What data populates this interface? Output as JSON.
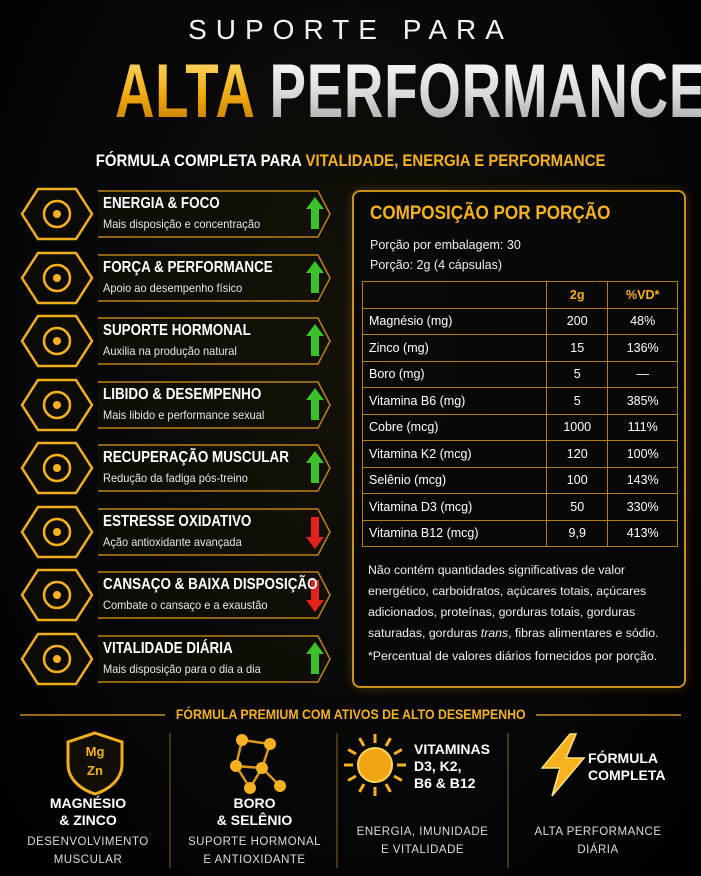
{
  "header": {
    "kicker": "SUPORTE PARA",
    "title_accent": "ALTA",
    "title_main": "PERFORMANCE",
    "subtitle_lead": "FÓRMULA COMPLETA PARA",
    "subtitle_highlight": "VITALIDADE, ENERGIA E PERFORMANCE"
  },
  "benefits": [
    {
      "title": "ENERGIA & FOCO",
      "description": "Mais disposição e concentração",
      "trend": "up"
    },
    {
      "title": "FORÇA & PERFORMANCE",
      "description": "Apoio ao desempenho físico",
      "trend": "up"
    },
    {
      "title": "SUPORTE HORMONAL",
      "description": "Auxilia na produção natural",
      "trend": "up"
    },
    {
      "title": "LIBIDO & DESEMPENHO",
      "description": "Mais libido e performance sexual",
      "trend": "up"
    },
    {
      "title": "RECUPERAÇÃO MUSCULAR",
      "description": "Redução da fadiga pós-treino",
      "trend": "up"
    },
    {
      "title": "ESTRESSE OXIDATIVO",
      "description": "Ação antioxidante avançada",
      "trend": "down"
    },
    {
      "title": "CANSAÇO & BAIXA DISPOSIÇÃO",
      "description": "Combate o cansaço e a exaustão",
      "trend": "down"
    },
    {
      "title": "VITALIDADE DIÁRIA",
      "description": "Mais disposição para o dia a dia",
      "trend": "up"
    }
  ],
  "composition": {
    "title": "COMPOSIÇÃO POR PORÇÃO",
    "serving_lines": [
      "Porção por embalagem: 30",
      "Porção: 2g (4 cápsulas)"
    ],
    "columns": [
      "2g",
      "%VD*"
    ],
    "rows": [
      [
        "Magnésio (mg)",
        "200",
        "48%"
      ],
      [
        "Zinco (mg)",
        "15",
        "136%"
      ],
      [
        "Boro (mg)",
        "5",
        "—"
      ],
      [
        "Vitamina B6 (mg)",
        "5",
        "385%"
      ],
      [
        "Cobre (mcg)",
        "1000",
        "111%"
      ],
      [
        "Vitamina K2 (mcg)",
        "120",
        "100%"
      ],
      [
        "Selênio (mcg)",
        "100",
        "143%"
      ],
      [
        "Vitamina D3 (mcg)",
        "50",
        "330%"
      ],
      [
        "Vitamina B12 (mcg)",
        "9,9",
        "413%"
      ]
    ],
    "note": [
      "Não contém quantidades significativas de valor energético, carboidratos, açúcares totais, açúcares adicionados, proteínas, gorduras totais, gorduras saturadas, gorduras ",
      "trans",
      ", fibras alimentares e sódio."
    ],
    "footnote": "*Percentual de valores diários fornecidos por porção."
  },
  "premium": {
    "banner": "FÓRMULA PREMIUM COM ATIVOS DE ALTO DESEMPENHO",
    "features": [
      {
        "icon_labels": [
          "Mg",
          "Zn"
        ],
        "title_lines": [
          "MAGNÉSIO",
          "& ZINCO"
        ],
        "subtitle_lines": [
          "DESENVOLVIMENTO",
          "MUSCULAR"
        ]
      },
      {
        "title_lines": [
          "BORO",
          "& SELÊNIO"
        ],
        "subtitle_lines": [
          "SUPORTE HORMONAL",
          "E ANTIOXIDANTE"
        ]
      },
      {
        "title_lines": [
          "VITAMINAS",
          "D3, K2,",
          "B6 & B12"
        ],
        "subtitle_lines": [
          "ENERGIA, IMUNIDADE",
          "E VITALIDADE"
        ]
      },
      {
        "title_lines": [
          "FÓRMULA",
          "COMPLETA"
        ],
        "subtitle_lines": [
          "ALTA PERFORMANCE",
          "DIÁRIA"
        ]
      }
    ]
  }
}
